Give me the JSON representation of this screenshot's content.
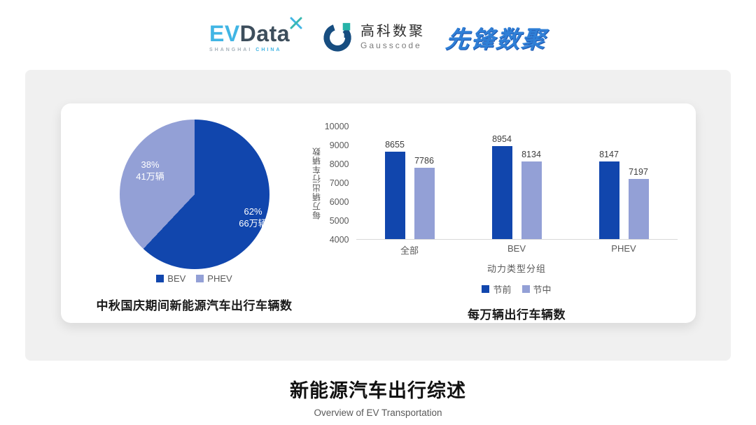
{
  "header": {
    "evdata_logo": {
      "ev": "EV",
      "data": "Data",
      "sub_left": "SHANGHAI",
      "sub_right": "CHINA"
    },
    "gausscode_logo": {
      "cn": "高科数聚",
      "en": "Gausscode",
      "ring_color": "#174D80",
      "accent_color": "#27B3A8"
    },
    "pioneer_logo": {
      "text": "先锋数聚"
    }
  },
  "colors": {
    "primary_dark_blue": "#1146AD",
    "light_periwinkle": "#93A0D6",
    "panel_gray": "#F0F0F0",
    "axis_gray": "#595959"
  },
  "chart_data": [
    {
      "type": "pie",
      "title": "中秋国庆期间新能源汽车出行车辆数",
      "slices": [
        {
          "label": "BEV",
          "percent": 62,
          "value_label": "66万辆",
          "color": "#1146AD"
        },
        {
          "label": "PHEV",
          "percent": 38,
          "value_label": "41万辆",
          "color": "#93A0D6"
        }
      ],
      "start_angle_deg": 0,
      "legend_position": "bottom"
    },
    {
      "type": "bar",
      "title": "每万辆出行车辆数",
      "categories": [
        "全部",
        "BEV",
        "PHEV"
      ],
      "series": [
        {
          "name": "节前",
          "color": "#1146AD",
          "values": [
            8655,
            8954,
            8147
          ]
        },
        {
          "name": "节中",
          "color": "#93A0D6",
          "values": [
            7786,
            8134,
            7197
          ]
        }
      ],
      "xlabel": "动力类型分组",
      "ylabel": "每万辆出行车辆数",
      "ylim": [
        4000,
        10000
      ],
      "yticks": [
        10000,
        9000,
        8000,
        7000,
        6000,
        5000,
        4000
      ],
      "grid": false,
      "legend_position": "bottom"
    }
  ],
  "footer": {
    "title": "新能源汽车出行综述",
    "subtitle": "Overview of EV Transportation"
  }
}
